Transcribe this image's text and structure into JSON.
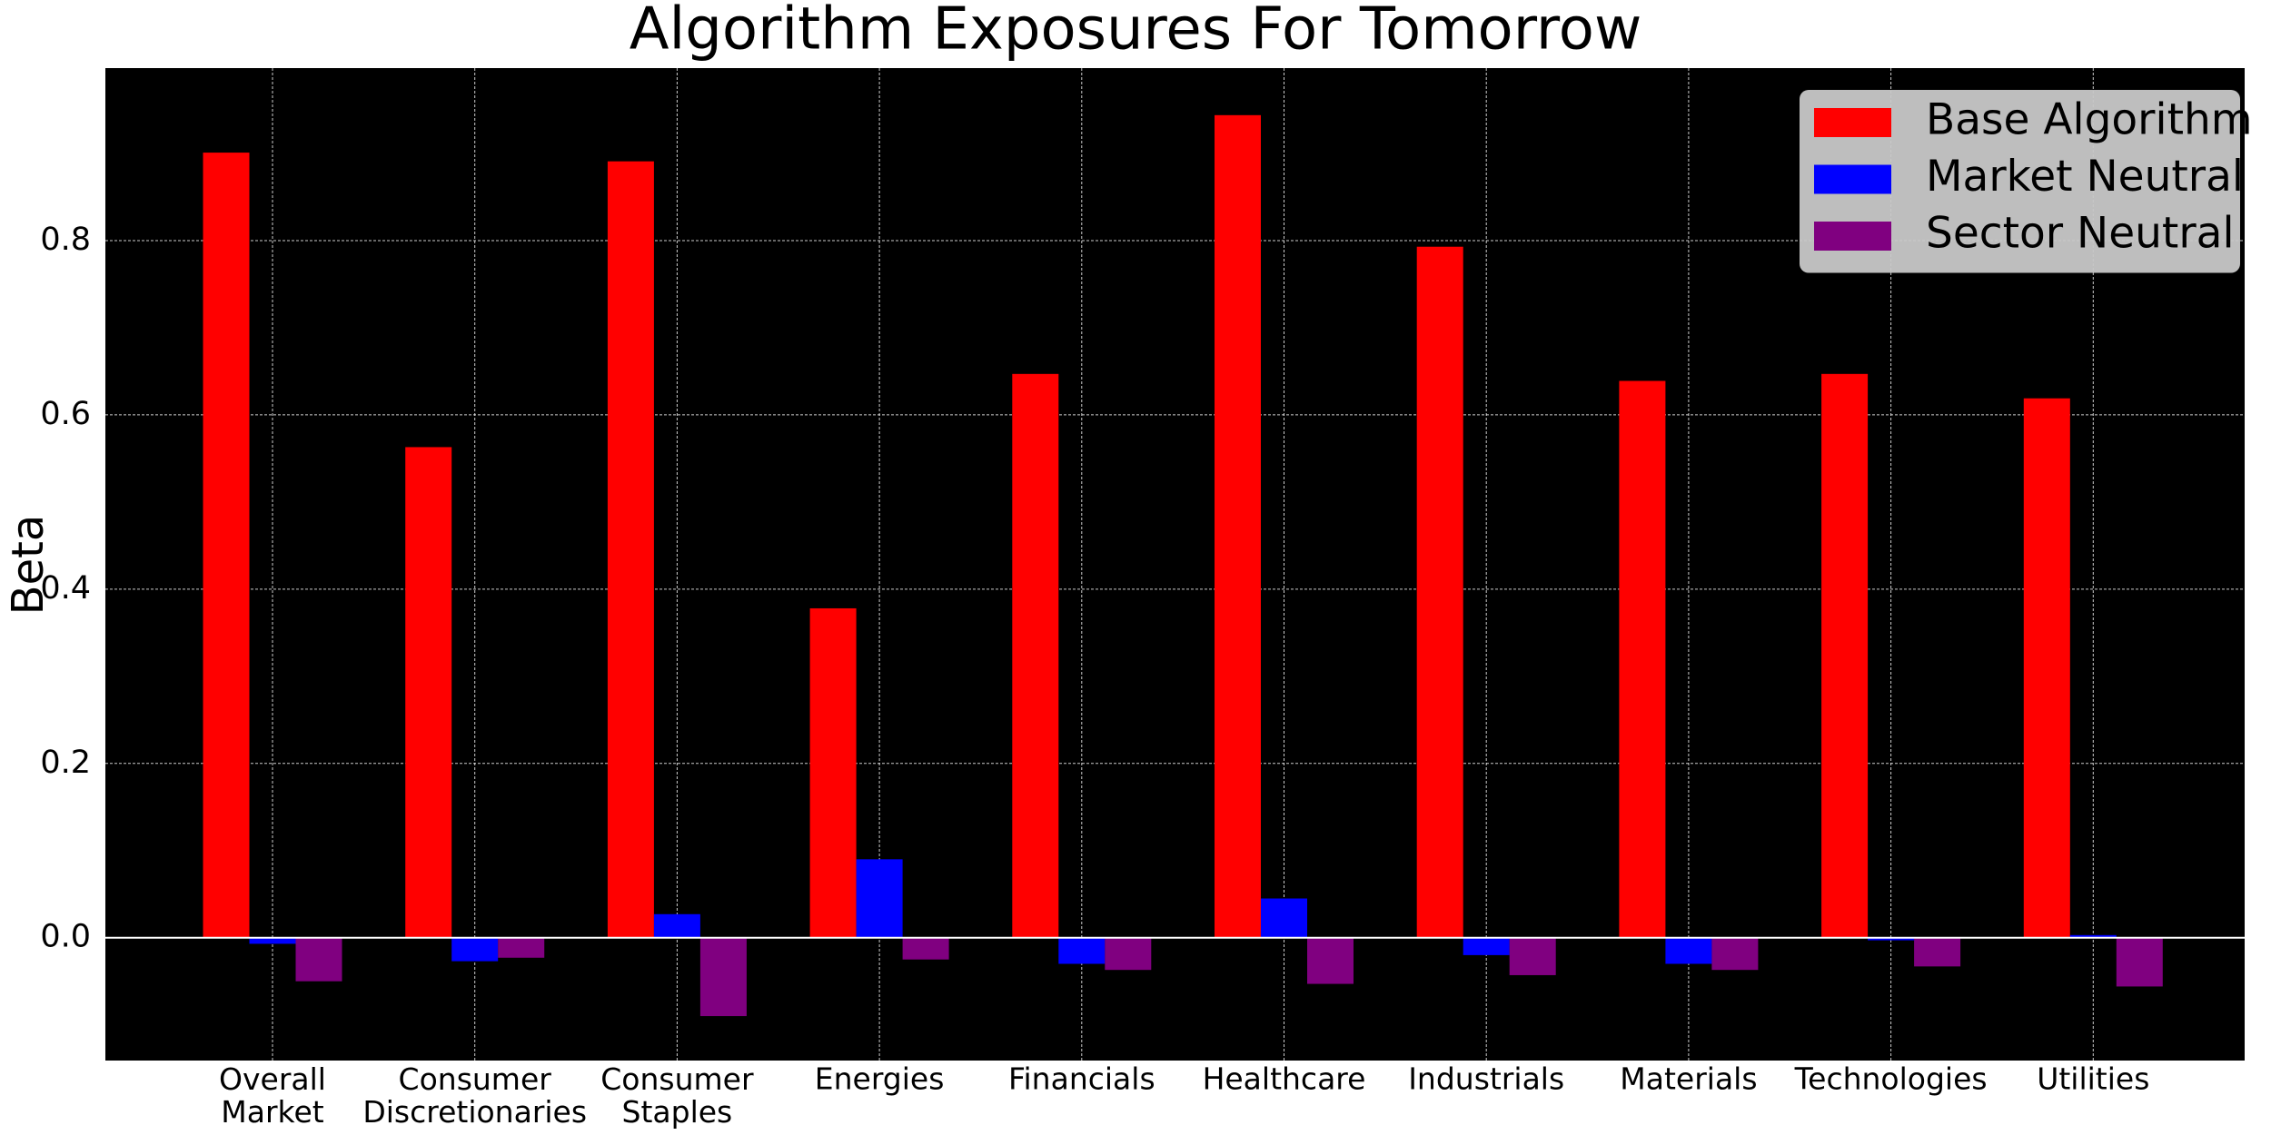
{
  "chart_data": {
    "type": "bar",
    "title": "Algorithm Exposures For Tomorrow",
    "ylabel": "Beta",
    "categories": [
      "Overall\nMarket",
      "Consumer\nDiscretionaries",
      "Consumer\nStaples",
      "Energies",
      "Financials",
      "Healthcare",
      "Industrials",
      "Materials",
      "Technologies",
      "Utilities"
    ],
    "series": [
      {
        "name": "Base Algorithm",
        "color": "#ff0000",
        "values": [
          0.901,
          0.563,
          0.891,
          0.378,
          0.647,
          0.944,
          0.793,
          0.639,
          0.647,
          0.619
        ]
      },
      {
        "name": "Market Neutral",
        "color": "#0000ff",
        "values": [
          -0.007,
          -0.027,
          0.027,
          0.09,
          -0.03,
          0.045,
          -0.02,
          -0.03,
          -0.003,
          0.003
        ]
      },
      {
        "name": "Sector Neutral",
        "color": "#800080",
        "values": [
          -0.05,
          -0.023,
          -0.09,
          -0.025,
          -0.037,
          -0.053,
          -0.043,
          -0.037,
          -0.033,
          -0.056
        ]
      }
    ],
    "ylim": [
      -0.141,
      0.998
    ],
    "yticks": [
      {
        "value": 0,
        "label": "0.0"
      },
      0.2,
      0.4,
      0.6,
      0.8
    ],
    "grid": true,
    "legend": "upper right"
  }
}
